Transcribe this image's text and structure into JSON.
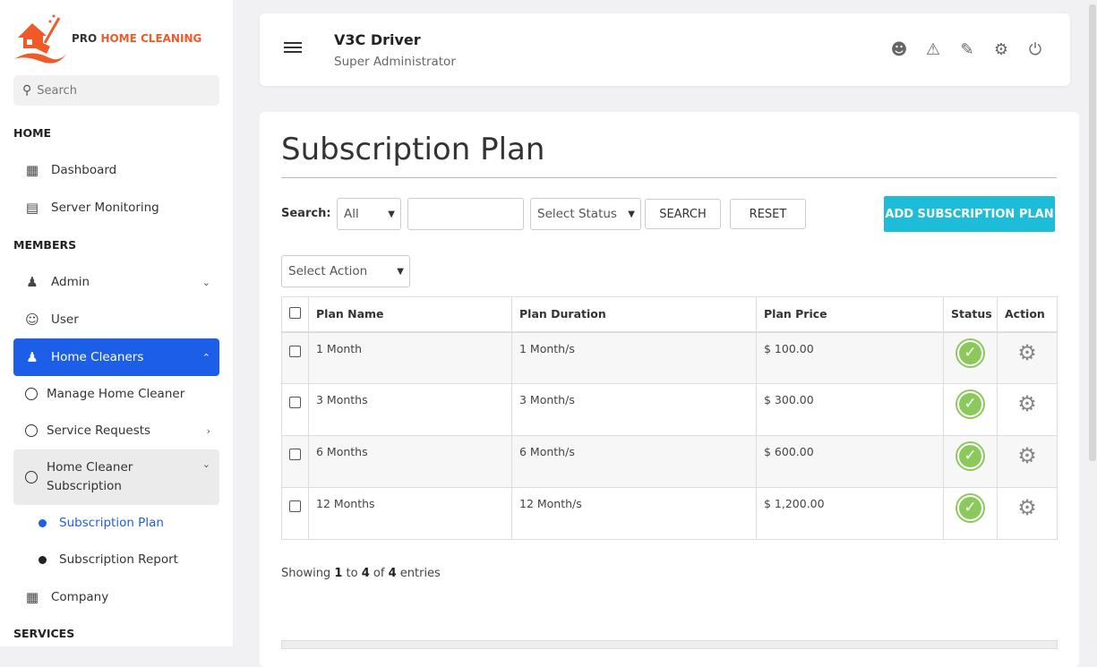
{
  "brand": {
    "pro": "PRO",
    "name": "HOME CLEANING",
    "accent": "#f05a28"
  },
  "sidebar": {
    "search_placeholder": "Search",
    "sections": [
      "HOME",
      "MEMBERS",
      "SERVICES"
    ],
    "items": [
      {
        "label": "Dashboard",
        "icon": "dashboard-icon"
      },
      {
        "label": "Server Monitoring",
        "icon": "chart-icon"
      },
      {
        "label": "Admin",
        "icon": "admin-icon"
      },
      {
        "label": "User",
        "icon": "users-icon"
      },
      {
        "label": "Home Cleaners",
        "icon": "person-icon"
      },
      {
        "label": "Manage Home Cleaner"
      },
      {
        "label": "Service Requests"
      },
      {
        "label": "Home Cleaner Subscription"
      },
      {
        "label": "Subscription Plan"
      },
      {
        "label": "Subscription Report"
      },
      {
        "label": "Company",
        "icon": "building-icon"
      }
    ]
  },
  "header": {
    "title": "V3C Driver",
    "subtitle": "Super Administrator"
  },
  "page": {
    "title": "Subscription Plan",
    "search_label": "Search:",
    "filter_value": "All",
    "search_value": "",
    "status_placeholder": "Select Status",
    "search_button": "SEARCH",
    "reset_button": "RESET",
    "add_button": "ADD SUBSCRIPTION PLAN",
    "action_placeholder": "Select Action",
    "columns": [
      "Plan Name",
      "Plan Duration",
      "Plan Price",
      "Status",
      "Action"
    ],
    "rows": [
      {
        "name": "1 Month",
        "duration": "1 Month/s",
        "price": "$ 100.00",
        "status": "active"
      },
      {
        "name": "3 Months",
        "duration": "3 Month/s",
        "price": "$ 300.00",
        "status": "active"
      },
      {
        "name": "6 Months",
        "duration": "6 Month/s",
        "price": "$ 600.00",
        "status": "active"
      },
      {
        "name": "12 Months",
        "duration": "12 Month/s",
        "price": "$ 1,200.00",
        "status": "active"
      }
    ],
    "showing": {
      "prefix": "Showing",
      "from": "1",
      "to_word": "to",
      "to": "4",
      "of_word": "of",
      "total": "4",
      "suffix": "entries"
    }
  }
}
